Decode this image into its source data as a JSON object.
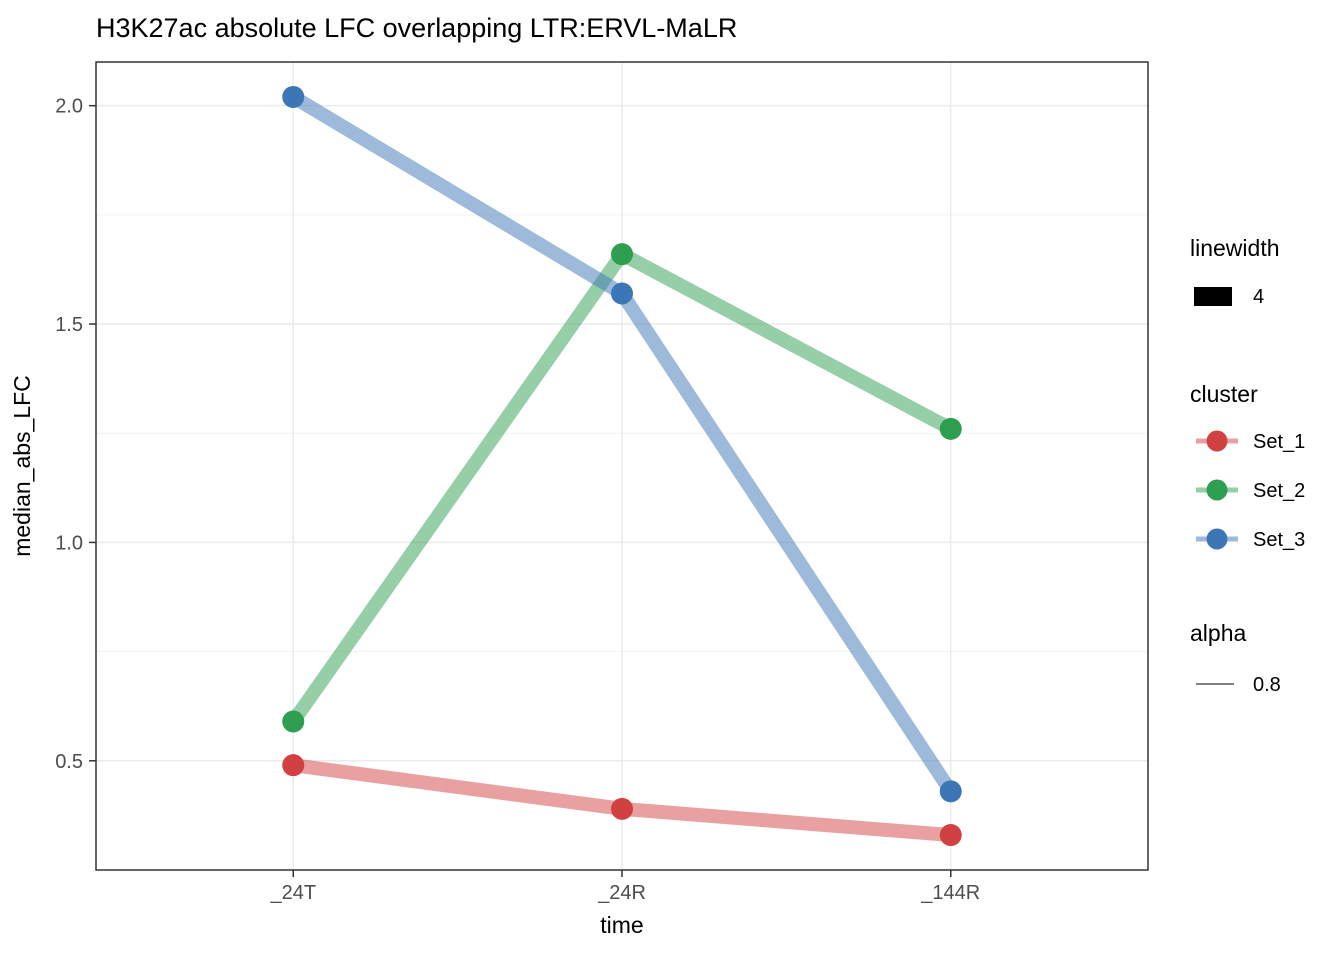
{
  "chart_data": {
    "type": "line",
    "title": "H3K27ac absolute LFC overlapping LTR:ERVL-MaLR",
    "xlabel": "time",
    "ylabel": "median_abs_LFC",
    "categories": [
      "_24T",
      "_24R",
      "_144R"
    ],
    "series": [
      {
        "name": "Set_1",
        "color": "#D14141",
        "values": [
          0.49,
          0.39,
          0.33
        ]
      },
      {
        "name": "Set_2",
        "color": "#2E9E50",
        "values": [
          0.59,
          1.66,
          1.26
        ]
      },
      {
        "name": "Set_3",
        "color": "#3D76B7",
        "values": [
          2.02,
          1.57,
          0.43
        ]
      }
    ],
    "ylim": [
      0.25,
      2.1
    ],
    "yticks": [
      0.5,
      1.0,
      1.5,
      2.0
    ],
    "yticks_minor": [
      0.75,
      1.25,
      1.75
    ],
    "grid": true,
    "legend_position": "right"
  },
  "legend": {
    "linewidth_title": "linewidth",
    "linewidth_value": "4",
    "cluster_title": "cluster",
    "alpha_title": "alpha",
    "alpha_value": "0.8"
  }
}
